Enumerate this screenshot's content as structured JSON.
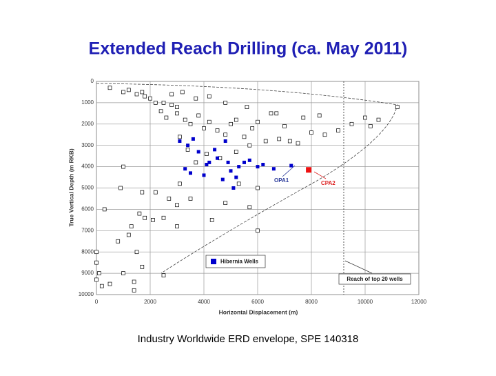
{
  "chart_data": {
    "type": "scatter",
    "title": "Extended Reach Drilling (ca. May 2011)",
    "x_label": "Horizontal Displacement (m)",
    "y_label": "True Vertical Depth (m RKB)",
    "caption": "Industry Worldwide ERD envelope, SPE 140318",
    "annotations": [
      "OPA1",
      "CPA2",
      "Reach of top 20 wells"
    ],
    "xlim": [
      0,
      12000
    ],
    "xticks": [
      0,
      2000,
      4000,
      6000,
      8000,
      10000,
      12000
    ],
    "ylim": [
      0,
      10000
    ],
    "yticks": [
      0,
      1000,
      2000,
      3000,
      4000,
      5000,
      6000,
      7000,
      8000,
      9000,
      10000
    ],
    "y_inverted": true,
    "grid": true,
    "series": [
      {
        "color": "#000000",
        "marker": "open-square",
        "x": [
          500,
          1000,
          1200,
          1500,
          1700,
          1800,
          2000,
          2200,
          2500,
          2800,
          3000,
          3200,
          3000,
          3300,
          3500,
          3800,
          4000,
          4200,
          4500,
          4800,
          5000,
          5200,
          5500,
          5800,
          6000,
          6300,
          6500,
          6800,
          7000,
          7200,
          7500,
          8000,
          8500,
          9000,
          9500,
          10000,
          10500,
          11200,
          10200,
          8300,
          7700,
          6700,
          5600,
          4800,
          4200,
          3700,
          2800,
          2400,
          2600,
          3100,
          3400,
          3700,
          4100,
          4600,
          5200,
          5700,
          2200,
          2500,
          3000,
          3500,
          4800,
          5700,
          6000,
          5300,
          1000,
          900,
          1700,
          1800,
          1600,
          1200,
          800,
          1500,
          1700,
          1400,
          0,
          0,
          100,
          0,
          200,
          500,
          3100,
          2700,
          6000,
          4300,
          3000,
          2100,
          1300,
          300,
          1000,
          2500,
          1400
        ],
        "values": [
          300,
          500,
          400,
          600,
          500,
          700,
          800,
          1000,
          1000,
          1100,
          1200,
          500,
          1500,
          1800,
          2000,
          1600,
          2200,
          1900,
          2300,
          2500,
          2000,
          1800,
          2600,
          2200,
          1900,
          2800,
          1500,
          2700,
          2100,
          2800,
          2900,
          2400,
          2500,
          2300,
          2000,
          1700,
          1800,
          1200,
          2100,
          1600,
          1700,
          1500,
          1200,
          1000,
          700,
          800,
          600,
          1400,
          1700,
          2600,
          3200,
          3800,
          3400,
          3600,
          3300,
          3000,
          5200,
          6400,
          5800,
          5500,
          5700,
          5900,
          5000,
          4800,
          4000,
          5000,
          5200,
          6400,
          6200,
          7200,
          7500,
          8000,
          8700,
          9400,
          8000,
          8500,
          9000,
          9300,
          9600,
          9500,
          4800,
          5500,
          7000,
          6500,
          6800,
          6500,
          6800,
          6000,
          9000,
          9100,
          9800
        ]
      },
      {
        "name": "Hibernia Wells",
        "color": "#0000cc",
        "marker": "filled-square",
        "x": [
          3100,
          3400,
          3600,
          3800,
          4100,
          3300,
          3500,
          4000,
          4200,
          4500,
          4800,
          4900,
          5000,
          5200,
          5300,
          5500,
          5700,
          6000,
          6200,
          6600,
          7250,
          4700,
          5100,
          4400
        ],
        "values": [
          2800,
          3000,
          2700,
          3300,
          3900,
          4100,
          4300,
          4400,
          3800,
          3600,
          2800,
          3800,
          4200,
          4500,
          4000,
          3800,
          3700,
          4000,
          3900,
          4100,
          3950,
          4600,
          5000,
          3200
        ]
      },
      {
        "color": "#ee1111",
        "marker": "filled-square",
        "x": [
          7900
        ],
        "values": [
          4150
        ]
      }
    ]
  }
}
